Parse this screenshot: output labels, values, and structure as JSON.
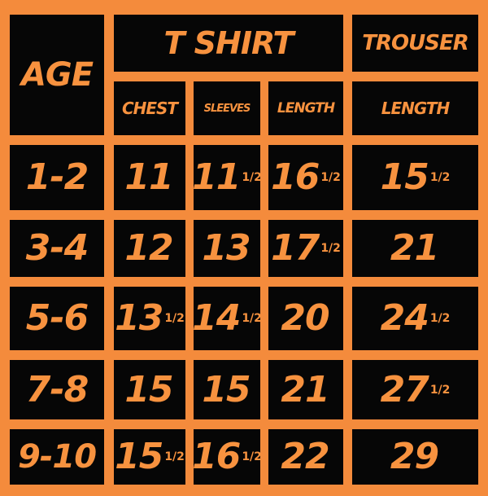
{
  "header": {
    "age": "AGE",
    "tshirt": "T SHIRT",
    "trouser": "TROUSER",
    "chest": "CHEST",
    "sleeves": "SLEEVES",
    "tshirt_length": "LENGTH",
    "trouser_length": "LENGTH"
  },
  "rows": [
    {
      "age": "1-2",
      "chest": "11",
      "chest_frac": "",
      "sleeves": "11",
      "sleeves_frac": "1/2",
      "length": "16",
      "length_frac": "1/2",
      "trouser": "15",
      "trouser_frac": "1/2"
    },
    {
      "age": "3-4",
      "chest": "12",
      "chest_frac": "",
      "sleeves": "13",
      "sleeves_frac": "",
      "length": "17",
      "length_frac": "1/2",
      "trouser": "21",
      "trouser_frac": ""
    },
    {
      "age": "5-6",
      "chest": "13",
      "chest_frac": "1/2",
      "sleeves": "14",
      "sleeves_frac": "1/2",
      "length": "20",
      "length_frac": "",
      "trouser": "24",
      "trouser_frac": "1/2"
    },
    {
      "age": "7-8",
      "chest": "15",
      "chest_frac": "",
      "sleeves": "15",
      "sleeves_frac": "",
      "length": "21",
      "length_frac": "",
      "trouser": "27",
      "trouser_frac": "1/2"
    },
    {
      "age": "9-10",
      "chest": "15",
      "chest_frac": "1/2",
      "sleeves": "16",
      "sleeves_frac": "1/2",
      "length": "22",
      "length_frac": "",
      "trouser": "29",
      "trouser_frac": ""
    }
  ],
  "colors": {
    "background": "#f48b3c",
    "cell": "#060606",
    "text": "#f7923f"
  }
}
